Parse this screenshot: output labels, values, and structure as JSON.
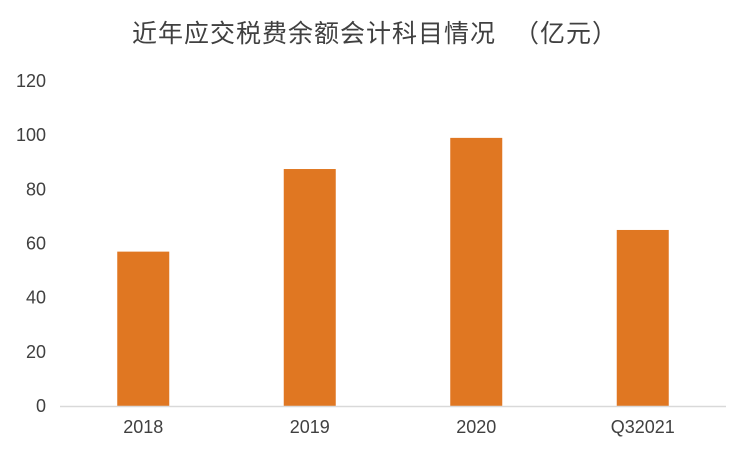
{
  "chart_data": {
    "type": "bar",
    "title": "近年应交税费余额会计科目情况  （亿元）",
    "categories": [
      "2018",
      "2019",
      "2020",
      "Q32021"
    ],
    "series": [
      {
        "values": [
          57,
          87.5,
          99,
          65
        ]
      }
    ],
    "ylim": [
      0,
      120
    ],
    "yticks": [
      0,
      20,
      40,
      60,
      80,
      100,
      120
    ],
    "xlabel": "",
    "ylabel": "",
    "grid": false,
    "legend": "none",
    "bar_color": "#E07722",
    "axis_color": "#D9D9D9",
    "text_color": "#404040"
  }
}
